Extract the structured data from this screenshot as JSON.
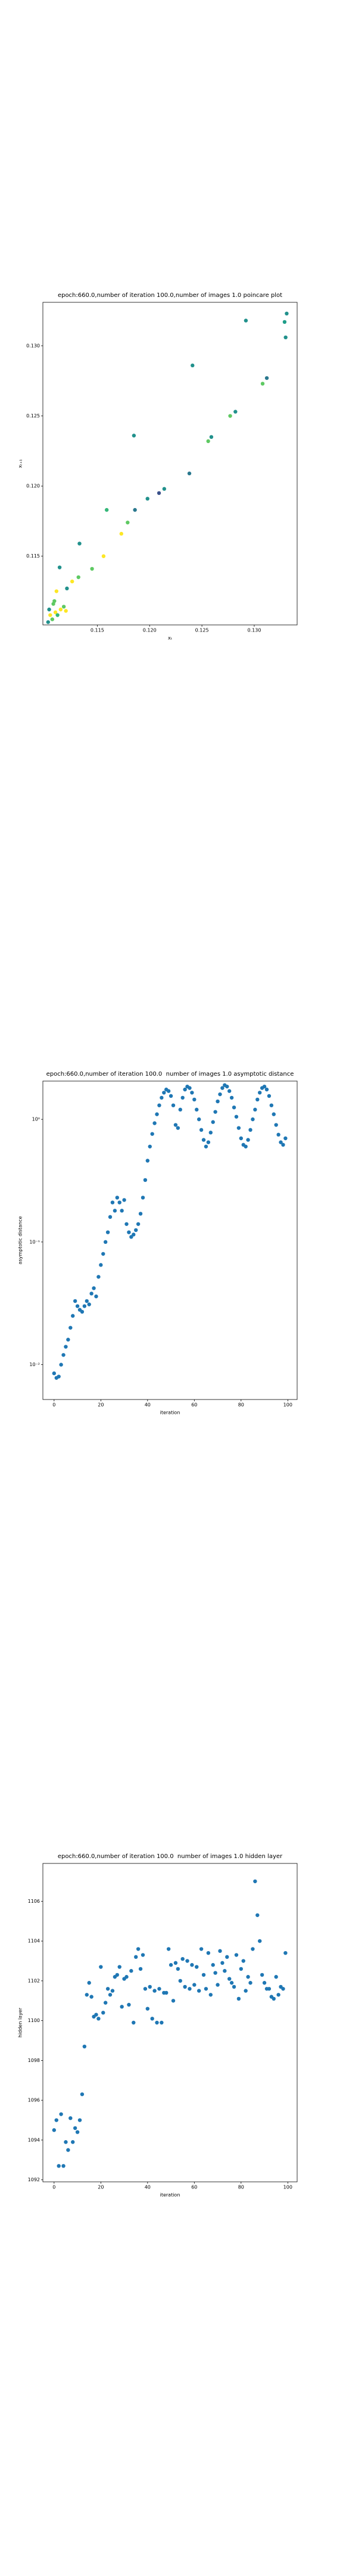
{
  "chart_data": [
    {
      "type": "scatter",
      "title": "epoch:660.0,number of iteration 100.0,number of images 1.0 poincare plot",
      "xlabel": "xₜ",
      "ylabel": "xₜ₊₁",
      "x": [
        0.1292,
        0.1331,
        0.1329,
        0.133,
        0.1312,
        0.1308,
        0.1282,
        0.1277,
        0.1259,
        0.1256,
        0.1241,
        0.1238,
        0.1214,
        0.1209,
        0.1198,
        0.1186,
        0.1185,
        0.1179,
        0.1173,
        0.1159,
        0.1156,
        0.1145,
        0.1133,
        0.1132,
        0.1126,
        0.1121,
        0.1114,
        0.1111,
        0.1108,
        0.1103,
        0.1105,
        0.1107,
        0.111,
        0.1112,
        0.1115,
        0.1118,
        0.112,
        0.1104,
        0.1109
      ],
      "y": [
        0.1318,
        0.1323,
        0.1317,
        0.1306,
        0.1277,
        0.1273,
        0.1253,
        0.125,
        0.1235,
        0.1232,
        0.1286,
        0.1209,
        0.1198,
        0.1195,
        0.1191,
        0.1183,
        0.1236,
        0.1174,
        0.1166,
        0.1183,
        0.115,
        0.1141,
        0.1159,
        0.1135,
        0.1132,
        0.1127,
        0.1142,
        0.1125,
        0.1116,
        0.1103,
        0.1108,
        0.1105,
        0.111,
        0.1108,
        0.1112,
        0.1114,
        0.1111,
        0.1112,
        0.1118
      ],
      "colors": [
        "#21918c",
        "#21918c",
        "#1f9e89",
        "#21918c",
        "#2a788e",
        "#5ec962",
        "#21918c",
        "#5ec962",
        "#21918c",
        "#5ec962",
        "#21918c",
        "#2a788e",
        "#21918c",
        "#3b528b",
        "#21918c",
        "#2a788e",
        "#21918c",
        "#5ec962",
        "#fde725",
        "#35b779",
        "#fde725",
        "#5ec962",
        "#21918c",
        "#5ec962",
        "#fde725",
        "#21918c",
        "#21918c",
        "#fde725",
        "#5ec962",
        "#21918c",
        "#fde725",
        "#5ec962",
        "#fde725",
        "#35b779",
        "#fde725",
        "#5ec962",
        "#fde725",
        "#21918c",
        "#5ec962"
      ],
      "xlim": [
        0.1098,
        0.1341
      ],
      "ylim": [
        0.1101,
        0.1331
      ],
      "xticks": [
        0.115,
        {
          "value": 0.12,
          "label": "0.120"
        },
        0.125,
        {
          "value": 0.13,
          "label": "0.130"
        }
      ],
      "yticks": [
        0.115,
        {
          "value": 0.12,
          "label": "0.120"
        },
        0.125,
        {
          "value": 0.13,
          "label": "0.130"
        }
      ]
    },
    {
      "type": "scatter",
      "title": "epoch:660.0,number of iteration 100.0  number of images 1.0 asymptotic distance",
      "xlabel": "iteration",
      "ylabel": "asymptotic distance",
      "ylog": true,
      "color": "#1f77b4",
      "x": [
        0,
        1,
        2,
        3,
        4,
        5,
        6,
        7,
        8,
        9,
        10,
        11,
        12,
        13,
        14,
        15,
        16,
        17,
        18,
        19,
        20,
        21,
        22,
        23,
        24,
        25,
        26,
        27,
        28,
        29,
        30,
        31,
        32,
        33,
        34,
        35,
        36,
        37,
        38,
        39,
        40,
        41,
        42,
        43,
        44,
        45,
        46,
        47,
        48,
        49,
        50,
        51,
        52,
        53,
        54,
        55,
        56,
        57,
        58,
        59,
        60,
        61,
        62,
        63,
        64,
        65,
        66,
        67,
        68,
        69,
        70,
        71,
        72,
        73,
        74,
        75,
        76,
        77,
        78,
        79,
        80,
        81,
        82,
        83,
        84,
        85,
        86,
        87,
        88,
        89,
        90,
        91,
        92,
        93,
        94,
        95,
        96,
        97,
        98,
        99
      ],
      "y": [
        0.0085,
        0.0078,
        0.008,
        0.01,
        0.012,
        0.014,
        0.016,
        0.02,
        0.025,
        0.033,
        0.03,
        0.028,
        0.027,
        0.03,
        0.033,
        0.031,
        0.038,
        0.042,
        0.036,
        0.052,
        0.065,
        0.08,
        0.1,
        0.12,
        0.16,
        0.21,
        0.18,
        0.23,
        0.21,
        0.18,
        0.22,
        0.14,
        0.12,
        0.11,
        0.115,
        0.125,
        0.14,
        0.17,
        0.23,
        0.32,
        0.46,
        0.6,
        0.76,
        0.93,
        1.1,
        1.3,
        1.5,
        1.65,
        1.75,
        1.7,
        1.55,
        1.3,
        0.9,
        0.85,
        1.2,
        1.5,
        1.75,
        1.85,
        1.8,
        1.65,
        1.45,
        1.2,
        1.0,
        0.82,
        0.68,
        0.6,
        0.65,
        0.78,
        0.95,
        1.15,
        1.4,
        1.6,
        1.8,
        1.9,
        1.85,
        1.7,
        1.5,
        1.25,
        1.05,
        0.85,
        0.7,
        0.62,
        0.6,
        0.68,
        0.82,
        1.0,
        1.2,
        1.45,
        1.65,
        1.8,
        1.85,
        1.75,
        1.55,
        1.3,
        1.1,
        0.9,
        0.75,
        0.65,
        0.62,
        0.7
      ],
      "xlim": [
        -4.8,
        104
      ],
      "ylim": [
        0.0052,
        2.05
      ],
      "xticks": [
        0,
        20,
        40,
        60,
        80,
        100
      ],
      "yticks": [
        {
          "value": 0.01,
          "label": "10⁻²"
        },
        {
          "value": 0.1,
          "label": "10⁻¹"
        },
        {
          "value": 1,
          "label": "10⁰"
        }
      ]
    },
    {
      "type": "scatter",
      "title": "epoch:660.0,number of iteration 100.0  number of images 1.0 hidden layer",
      "xlabel": "iteration",
      "ylabel": "hidden layer",
      "color": "#1f77b4",
      "x": [
        0,
        1,
        2,
        3,
        4,
        5,
        6,
        7,
        8,
        9,
        10,
        11,
        12,
        13,
        14,
        15,
        16,
        17,
        18,
        19,
        20,
        21,
        22,
        23,
        24,
        25,
        26,
        27,
        28,
        29,
        30,
        31,
        32,
        33,
        34,
        35,
        36,
        37,
        38,
        39,
        40,
        41,
        42,
        43,
        44,
        45,
        46,
        47,
        48,
        49,
        50,
        51,
        52,
        53,
        54,
        55,
        56,
        57,
        58,
        59,
        60,
        61,
        62,
        63,
        64,
        65,
        66,
        67,
        68,
        69,
        70,
        71,
        72,
        73,
        74,
        75,
        76,
        77,
        78,
        79,
        80,
        81,
        82,
        83,
        84,
        85,
        86,
        87,
        88,
        89,
        90,
        91,
        92,
        93,
        94,
        95,
        96,
        97,
        98,
        99
      ],
      "y": [
        1094.5,
        1095,
        1092.7,
        1095.3,
        1092.7,
        1093.9,
        1093.5,
        1095.1,
        1093.9,
        1094.6,
        1094.4,
        1095,
        1096.3,
        1098.7,
        1101.3,
        1101.9,
        1101.2,
        1100.2,
        1100.3,
        1100.1,
        1102.7,
        1100.4,
        1100.9,
        1101.6,
        1101.3,
        1101.5,
        1102.2,
        1102.3,
        1102.7,
        1100.7,
        1102.1,
        1102.2,
        1100.8,
        1102.5,
        1099.9,
        1103.2,
        1103.6,
        1102.6,
        1103.3,
        1101.6,
        1100.6,
        1101.7,
        1100.1,
        1101.5,
        1099.9,
        1101.6,
        1099.9,
        1101.4,
        1101.4,
        1103.6,
        1102.8,
        1101,
        1102.9,
        1102.6,
        1102,
        1103.1,
        1101.7,
        1103,
        1101.6,
        1102.8,
        1101.8,
        1102.7,
        1101.5,
        1103.6,
        1102.3,
        1101.6,
        1103.4,
        1101.3,
        1102.8,
        1102.4,
        1101.8,
        1103.5,
        1102.9,
        1102.5,
        1103.2,
        1102.1,
        1101.9,
        1101.7,
        1103.3,
        1101.1,
        1102.6,
        1103,
        1101.5,
        1102.2,
        1101.9,
        1103.6,
        1107,
        1105.3,
        1104,
        1102.3,
        1101.9,
        1101.6,
        1101.6,
        1101.2,
        1101.1,
        1102.2,
        1101.3,
        1101.7,
        1101.6,
        1103.4
      ],
      "xlim": [
        -4.8,
        104
      ],
      "ylim": [
        1091.9,
        1107.9
      ],
      "xticks": [
        0,
        20,
        40,
        60,
        80,
        100
      ],
      "yticks": [
        1092,
        1094,
        1096,
        1098,
        1100,
        1102,
        1104,
        1106
      ]
    }
  ]
}
